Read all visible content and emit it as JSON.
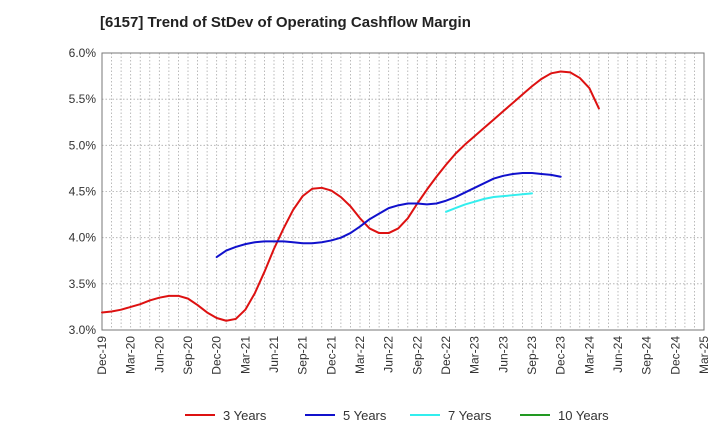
{
  "chart_data": {
    "type": "line",
    "title": "[6157]  Trend of StDev of Operating Cashflow Margin",
    "xlabel": "",
    "ylabel": "",
    "ylim": [
      3.0,
      6.0
    ],
    "y_ticks": [
      3.0,
      3.5,
      4.0,
      4.5,
      5.0,
      5.5,
      6.0
    ],
    "y_tick_labels": [
      "3.0%",
      "3.5%",
      "4.0%",
      "4.5%",
      "5.0%",
      "5.5%",
      "6.0%"
    ],
    "x_tick_labels": [
      "Dec-19",
      "Mar-20",
      "Jun-20",
      "Sep-20",
      "Dec-20",
      "Mar-21",
      "Jun-21",
      "Sep-21",
      "Dec-21",
      "Mar-22",
      "Jun-22",
      "Sep-22",
      "Dec-22",
      "Mar-23",
      "Jun-23",
      "Sep-23",
      "Dec-23",
      "Mar-24",
      "Jun-24",
      "Sep-24",
      "Dec-24",
      "Mar-25"
    ],
    "x_unit": "month",
    "grid": true,
    "legend_position": "bottom",
    "series": [
      {
        "name": "3 Years",
        "color": "#dd1111",
        "points": [
          [
            "Dec-19",
            3.19
          ],
          [
            "Jan-20",
            3.2
          ],
          [
            "Feb-20",
            3.22
          ],
          [
            "Mar-20",
            3.25
          ],
          [
            "Apr-20",
            3.28
          ],
          [
            "May-20",
            3.32
          ],
          [
            "Jun-20",
            3.35
          ],
          [
            "Jul-20",
            3.37
          ],
          [
            "Aug-20",
            3.37
          ],
          [
            "Sep-20",
            3.34
          ],
          [
            "Oct-20",
            3.27
          ],
          [
            "Nov-20",
            3.19
          ],
          [
            "Dec-20",
            3.13
          ],
          [
            "Jan-21",
            3.1
          ],
          [
            "Feb-21",
            3.12
          ],
          [
            "Mar-21",
            3.22
          ],
          [
            "Apr-21",
            3.4
          ],
          [
            "May-21",
            3.63
          ],
          [
            "Jun-21",
            3.88
          ],
          [
            "Jul-21",
            4.1
          ],
          [
            "Aug-21",
            4.3
          ],
          [
            "Sep-21",
            4.45
          ],
          [
            "Oct-21",
            4.53
          ],
          [
            "Nov-21",
            4.54
          ],
          [
            "Dec-21",
            4.51
          ],
          [
            "Jan-22",
            4.44
          ],
          [
            "Feb-22",
            4.34
          ],
          [
            "Mar-22",
            4.21
          ],
          [
            "Apr-22",
            4.1
          ],
          [
            "May-22",
            4.05
          ],
          [
            "Jun-22",
            4.05
          ],
          [
            "Jul-22",
            4.1
          ],
          [
            "Aug-22",
            4.21
          ],
          [
            "Sep-22",
            4.37
          ],
          [
            "Oct-22",
            4.52
          ],
          [
            "Nov-22",
            4.66
          ],
          [
            "Dec-22",
            4.79
          ],
          [
            "Jan-23",
            4.91
          ],
          [
            "Feb-23",
            5.01
          ],
          [
            "Mar-23",
            5.1
          ],
          [
            "Apr-23",
            5.19
          ],
          [
            "May-23",
            5.28
          ],
          [
            "Jun-23",
            5.37
          ],
          [
            "Jul-23",
            5.46
          ],
          [
            "Aug-23",
            5.55
          ],
          [
            "Sep-23",
            5.64
          ],
          [
            "Oct-23",
            5.72
          ],
          [
            "Nov-23",
            5.78
          ],
          [
            "Dec-23",
            5.8
          ],
          [
            "Jan-24",
            5.79
          ],
          [
            "Feb-24",
            5.73
          ],
          [
            "Mar-24",
            5.62
          ],
          [
            "Apr-24",
            5.4
          ]
        ]
      },
      {
        "name": "5 Years",
        "color": "#1111cc",
        "points": [
          [
            "Dec-20",
            3.79
          ],
          [
            "Jan-21",
            3.86
          ],
          [
            "Feb-21",
            3.9
          ],
          [
            "Mar-21",
            3.93
          ],
          [
            "Apr-21",
            3.95
          ],
          [
            "May-21",
            3.96
          ],
          [
            "Jun-21",
            3.96
          ],
          [
            "Jul-21",
            3.96
          ],
          [
            "Aug-21",
            3.95
          ],
          [
            "Sep-21",
            3.94
          ],
          [
            "Oct-21",
            3.94
          ],
          [
            "Nov-21",
            3.95
          ],
          [
            "Dec-21",
            3.97
          ],
          [
            "Jan-22",
            4.0
          ],
          [
            "Feb-22",
            4.05
          ],
          [
            "Mar-22",
            4.12
          ],
          [
            "Apr-22",
            4.2
          ],
          [
            "May-22",
            4.26
          ],
          [
            "Jun-22",
            4.32
          ],
          [
            "Jul-22",
            4.35
          ],
          [
            "Aug-22",
            4.37
          ],
          [
            "Sep-22",
            4.37
          ],
          [
            "Oct-22",
            4.36
          ],
          [
            "Nov-22",
            4.37
          ],
          [
            "Dec-22",
            4.4
          ],
          [
            "Jan-23",
            4.44
          ],
          [
            "Feb-23",
            4.49
          ],
          [
            "Mar-23",
            4.54
          ],
          [
            "Apr-23",
            4.59
          ],
          [
            "May-23",
            4.64
          ],
          [
            "Jun-23",
            4.67
          ],
          [
            "Jul-23",
            4.69
          ],
          [
            "Aug-23",
            4.7
          ],
          [
            "Sep-23",
            4.7
          ],
          [
            "Oct-23",
            4.69
          ],
          [
            "Nov-23",
            4.68
          ],
          [
            "Dec-23",
            4.66
          ]
        ]
      },
      {
        "name": "7 Years",
        "color": "#33eeee",
        "points": [
          [
            "Dec-22",
            4.28
          ],
          [
            "Jan-23",
            4.32
          ],
          [
            "Feb-23",
            4.36
          ],
          [
            "Mar-23",
            4.39
          ],
          [
            "Apr-23",
            4.42
          ],
          [
            "May-23",
            4.44
          ],
          [
            "Jun-23",
            4.45
          ],
          [
            "Jul-23",
            4.46
          ],
          [
            "Aug-23",
            4.47
          ],
          [
            "Sep-23",
            4.48
          ]
        ]
      },
      {
        "name": "10 Years",
        "color": "#229922",
        "points": []
      }
    ]
  }
}
